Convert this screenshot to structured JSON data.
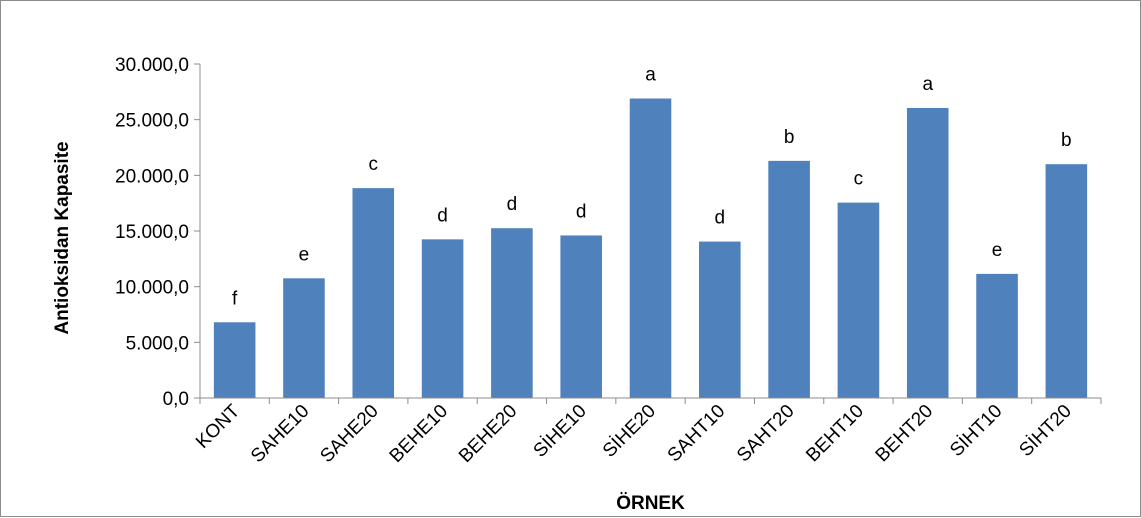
{
  "chart_data": {
    "type": "bar",
    "title": "",
    "xlabel": "ÖRNEK",
    "ylabel": "Antioksidan Kapasite",
    "ylim": [
      0,
      30000
    ],
    "yticks": [
      0,
      5000,
      10000,
      15000,
      20000,
      25000,
      30000
    ],
    "ytick_labels": [
      "0,0",
      "5.000,0",
      "10.000,0",
      "15.000,0",
      "20.000,0",
      "25.000,0",
      "30.000,0"
    ],
    "categories": [
      "KONT",
      "SAHE10",
      "SAHE20",
      "BEHE10",
      "BEHE20",
      "SİHE10",
      "SİHE20",
      "SAHT10",
      "SAHT20",
      "BEHT10",
      "BEHT20",
      "SİHT10",
      "SİHT20"
    ],
    "values": [
      6800,
      10750,
      18850,
      14250,
      15250,
      14600,
      26900,
      14050,
      21300,
      17550,
      26050,
      11150,
      21000
    ],
    "data_labels": [
      "f",
      "e",
      "c",
      "d",
      "d",
      "d",
      "a",
      "d",
      "b",
      "c",
      "a",
      "e",
      "b"
    ],
    "bar_color": "#4f81bd",
    "grid": false,
    "legend": "none"
  }
}
